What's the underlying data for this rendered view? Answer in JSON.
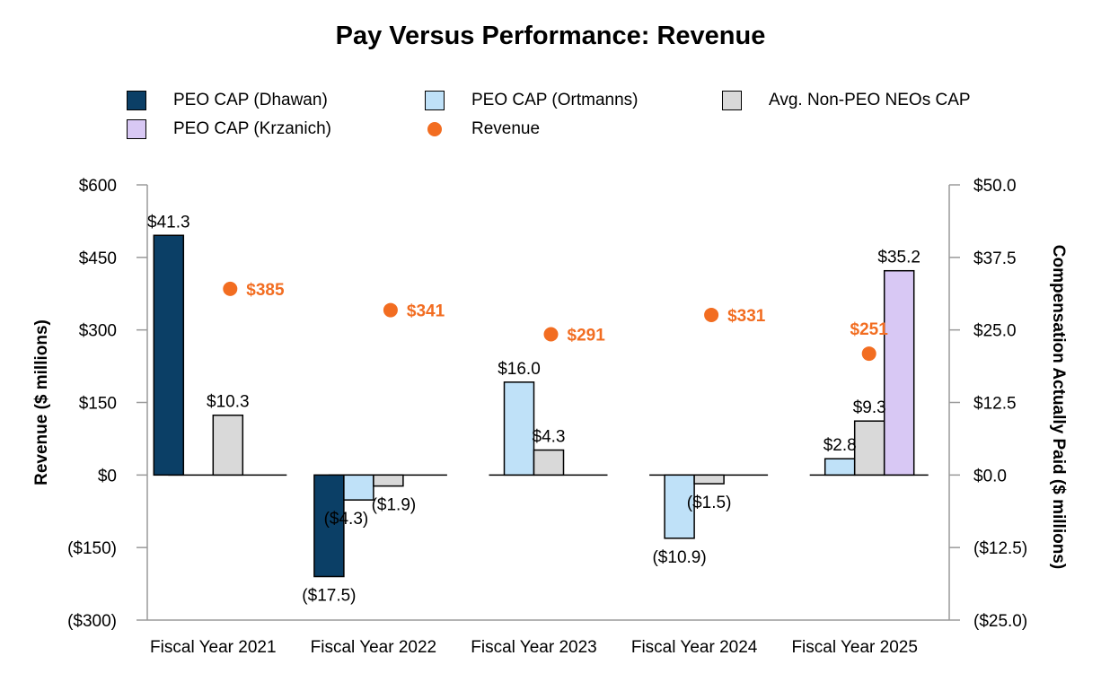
{
  "chart_data": {
    "type": "bar",
    "title": "Pay Versus Performance: Revenue",
    "categories": [
      "Fiscal Year 2021",
      "Fiscal Year 2022",
      "Fiscal Year 2023",
      "Fiscal Year 2024",
      "Fiscal Year 2025"
    ],
    "series": [
      {
        "key": "dhawan",
        "name": "PEO CAP (Dhawan)",
        "axis": "right",
        "color": "#0b3f66",
        "values": [
          41.3,
          -17.5,
          null,
          null,
          null
        ],
        "labels": [
          "$41.3",
          "($17.5)",
          "",
          "",
          ""
        ]
      },
      {
        "key": "ortmanns",
        "name": "PEO CAP (Ortmanns)",
        "axis": "right",
        "color": "#bfe1f8",
        "values": [
          null,
          -4.3,
          16.0,
          -10.9,
          2.8
        ],
        "labels": [
          "",
          "($4.3)",
          "$16.0",
          "($10.9)",
          "$2.8"
        ]
      },
      {
        "key": "nonpeo",
        "name": "Avg. Non-PEO NEOs CAP",
        "axis": "right",
        "color": "#d9d9d9",
        "values": [
          10.3,
          -1.9,
          4.3,
          -1.5,
          9.3
        ],
        "labels": [
          "$10.3",
          "($1.9)",
          "$4.3",
          "($1.5)",
          "$9.3"
        ]
      },
      {
        "key": "krzanich",
        "name": "PEO CAP (Krzanich)",
        "axis": "right",
        "color": "#d8c8f4",
        "values": [
          null,
          null,
          null,
          null,
          35.2
        ],
        "labels": [
          "",
          "",
          "",
          "",
          "$35.2"
        ]
      }
    ],
    "revenue": {
      "name": "Revenue",
      "axis": "left",
      "color": "#f26d21",
      "values": [
        385,
        341,
        291,
        331,
        251
      ],
      "labels": [
        "$385",
        "$341",
        "$291",
        "$331",
        "$251"
      ]
    },
    "legend_order": [
      "dhawan",
      "ortmanns",
      "nonpeo",
      "krzanich",
      "revenue"
    ],
    "ylabel": "Revenue ($ millions)",
    "y2label": "Compensation Actually Paid ($ millions)",
    "ylim": [
      -300,
      600
    ],
    "y2lim": [
      -25,
      50
    ],
    "yticks": [
      -300,
      -150,
      0,
      150,
      300,
      450,
      600
    ],
    "ytick_labels": [
      "($300)",
      "($150)",
      "$0",
      "$150",
      "$300",
      "$450",
      "$600"
    ],
    "y2ticks": [
      -25,
      -12.5,
      0,
      12.5,
      25,
      37.5,
      50
    ],
    "y2tick_labels": [
      "($25.0)",
      "($12.5)",
      "$0.0",
      "$12.5",
      "$25.0",
      "$37.5",
      "$50.0"
    ],
    "legend_position": "top"
  }
}
